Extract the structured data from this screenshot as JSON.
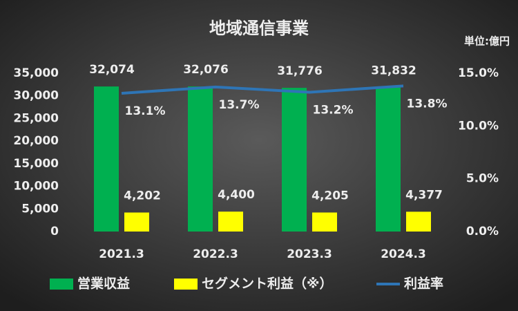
{
  "chart_data": {
    "type": "combo",
    "title": "地域通信事業",
    "unit_label": "単位:億円",
    "categories": [
      "2021.3",
      "2022.3",
      "2023.3",
      "2024.3"
    ],
    "series": [
      {
        "name": "営業収益",
        "type": "bar",
        "color": "#00b050",
        "values": [
          32074,
          32076,
          31776,
          31832
        ],
        "value_labels": [
          "32,074",
          "32,076",
          "31,776",
          "31,832"
        ]
      },
      {
        "name": "セグメント利益（※）",
        "type": "bar",
        "color": "#ffff00",
        "values": [
          4202,
          4400,
          4205,
          4377
        ],
        "value_labels": [
          "4,202",
          "4,400",
          "4,205",
          "4,377"
        ]
      },
      {
        "name": "利益率",
        "type": "line",
        "axis": "y2",
        "color": "#2e75b6",
        "values": [
          13.1,
          13.7,
          13.2,
          13.8
        ],
        "value_labels": [
          "13.1%",
          "13.7%",
          "13.2%",
          "13.8%"
        ]
      }
    ],
    "ylim": [
      0,
      35000
    ],
    "yticks": [
      0,
      {
        "value": 5000,
        "label": "5,000"
      },
      {
        "value": 10000,
        "label": "10,000"
      },
      {
        "value": 15000,
        "label": "15,000"
      },
      {
        "value": 20000,
        "label": "20,000"
      },
      {
        "value": 25000,
        "label": "25,000"
      },
      {
        "value": 30000,
        "label": "30,000"
      },
      {
        "value": 35000,
        "label": "35,000"
      }
    ],
    "y2lim": [
      0,
      15
    ],
    "y2ticks": [
      {
        "value": 0,
        "label": "0.0%"
      },
      {
        "value": 5,
        "label": "5.0%"
      },
      {
        "value": 10,
        "label": "10.0%"
      },
      {
        "value": 15,
        "label": "15.0%"
      }
    ],
    "legend": "bottom"
  }
}
